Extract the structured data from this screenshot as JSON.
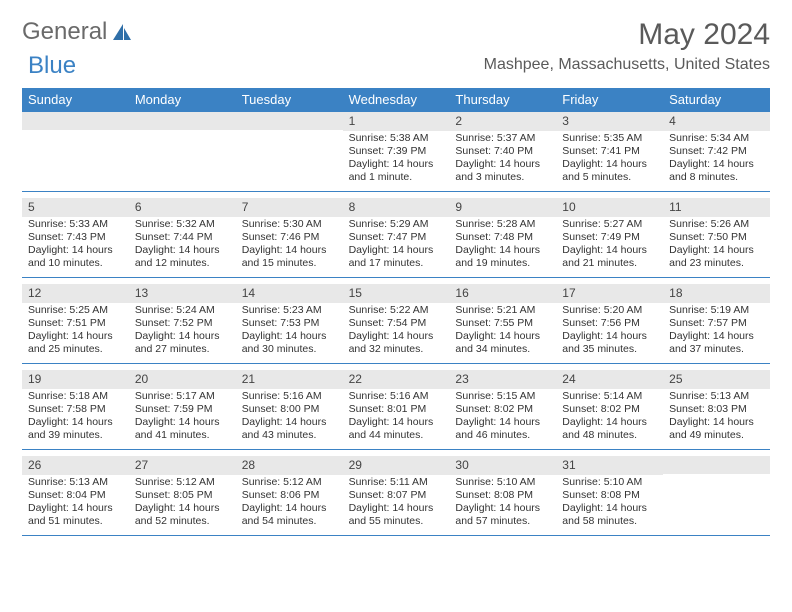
{
  "brand": {
    "part1": "General",
    "part2": "Blue"
  },
  "title": "May 2024",
  "location": "Mashpee, Massachusetts, United States",
  "colors": {
    "header_bg": "#3b82c4",
    "header_text": "#ffffff",
    "date_bg": "#e8e8e8",
    "divider": "#3b82c4",
    "text": "#333333",
    "title_text": "#5a5a5a"
  },
  "day_names": [
    "Sunday",
    "Monday",
    "Tuesday",
    "Wednesday",
    "Thursday",
    "Friday",
    "Saturday"
  ],
  "weeks": [
    [
      {
        "date": "",
        "sunrise": "",
        "sunset": "",
        "daylight": ""
      },
      {
        "date": "",
        "sunrise": "",
        "sunset": "",
        "daylight": ""
      },
      {
        "date": "",
        "sunrise": "",
        "sunset": "",
        "daylight": ""
      },
      {
        "date": "1",
        "sunrise": "Sunrise: 5:38 AM",
        "sunset": "Sunset: 7:39 PM",
        "daylight": "Daylight: 14 hours and 1 minute."
      },
      {
        "date": "2",
        "sunrise": "Sunrise: 5:37 AM",
        "sunset": "Sunset: 7:40 PM",
        "daylight": "Daylight: 14 hours and 3 minutes."
      },
      {
        "date": "3",
        "sunrise": "Sunrise: 5:35 AM",
        "sunset": "Sunset: 7:41 PM",
        "daylight": "Daylight: 14 hours and 5 minutes."
      },
      {
        "date": "4",
        "sunrise": "Sunrise: 5:34 AM",
        "sunset": "Sunset: 7:42 PM",
        "daylight": "Daylight: 14 hours and 8 minutes."
      }
    ],
    [
      {
        "date": "5",
        "sunrise": "Sunrise: 5:33 AM",
        "sunset": "Sunset: 7:43 PM",
        "daylight": "Daylight: 14 hours and 10 minutes."
      },
      {
        "date": "6",
        "sunrise": "Sunrise: 5:32 AM",
        "sunset": "Sunset: 7:44 PM",
        "daylight": "Daylight: 14 hours and 12 minutes."
      },
      {
        "date": "7",
        "sunrise": "Sunrise: 5:30 AM",
        "sunset": "Sunset: 7:46 PM",
        "daylight": "Daylight: 14 hours and 15 minutes."
      },
      {
        "date": "8",
        "sunrise": "Sunrise: 5:29 AM",
        "sunset": "Sunset: 7:47 PM",
        "daylight": "Daylight: 14 hours and 17 minutes."
      },
      {
        "date": "9",
        "sunrise": "Sunrise: 5:28 AM",
        "sunset": "Sunset: 7:48 PM",
        "daylight": "Daylight: 14 hours and 19 minutes."
      },
      {
        "date": "10",
        "sunrise": "Sunrise: 5:27 AM",
        "sunset": "Sunset: 7:49 PM",
        "daylight": "Daylight: 14 hours and 21 minutes."
      },
      {
        "date": "11",
        "sunrise": "Sunrise: 5:26 AM",
        "sunset": "Sunset: 7:50 PM",
        "daylight": "Daylight: 14 hours and 23 minutes."
      }
    ],
    [
      {
        "date": "12",
        "sunrise": "Sunrise: 5:25 AM",
        "sunset": "Sunset: 7:51 PM",
        "daylight": "Daylight: 14 hours and 25 minutes."
      },
      {
        "date": "13",
        "sunrise": "Sunrise: 5:24 AM",
        "sunset": "Sunset: 7:52 PM",
        "daylight": "Daylight: 14 hours and 27 minutes."
      },
      {
        "date": "14",
        "sunrise": "Sunrise: 5:23 AM",
        "sunset": "Sunset: 7:53 PM",
        "daylight": "Daylight: 14 hours and 30 minutes."
      },
      {
        "date": "15",
        "sunrise": "Sunrise: 5:22 AM",
        "sunset": "Sunset: 7:54 PM",
        "daylight": "Daylight: 14 hours and 32 minutes."
      },
      {
        "date": "16",
        "sunrise": "Sunrise: 5:21 AM",
        "sunset": "Sunset: 7:55 PM",
        "daylight": "Daylight: 14 hours and 34 minutes."
      },
      {
        "date": "17",
        "sunrise": "Sunrise: 5:20 AM",
        "sunset": "Sunset: 7:56 PM",
        "daylight": "Daylight: 14 hours and 35 minutes."
      },
      {
        "date": "18",
        "sunrise": "Sunrise: 5:19 AM",
        "sunset": "Sunset: 7:57 PM",
        "daylight": "Daylight: 14 hours and 37 minutes."
      }
    ],
    [
      {
        "date": "19",
        "sunrise": "Sunrise: 5:18 AM",
        "sunset": "Sunset: 7:58 PM",
        "daylight": "Daylight: 14 hours and 39 minutes."
      },
      {
        "date": "20",
        "sunrise": "Sunrise: 5:17 AM",
        "sunset": "Sunset: 7:59 PM",
        "daylight": "Daylight: 14 hours and 41 minutes."
      },
      {
        "date": "21",
        "sunrise": "Sunrise: 5:16 AM",
        "sunset": "Sunset: 8:00 PM",
        "daylight": "Daylight: 14 hours and 43 minutes."
      },
      {
        "date": "22",
        "sunrise": "Sunrise: 5:16 AM",
        "sunset": "Sunset: 8:01 PM",
        "daylight": "Daylight: 14 hours and 44 minutes."
      },
      {
        "date": "23",
        "sunrise": "Sunrise: 5:15 AM",
        "sunset": "Sunset: 8:02 PM",
        "daylight": "Daylight: 14 hours and 46 minutes."
      },
      {
        "date": "24",
        "sunrise": "Sunrise: 5:14 AM",
        "sunset": "Sunset: 8:02 PM",
        "daylight": "Daylight: 14 hours and 48 minutes."
      },
      {
        "date": "25",
        "sunrise": "Sunrise: 5:13 AM",
        "sunset": "Sunset: 8:03 PM",
        "daylight": "Daylight: 14 hours and 49 minutes."
      }
    ],
    [
      {
        "date": "26",
        "sunrise": "Sunrise: 5:13 AM",
        "sunset": "Sunset: 8:04 PM",
        "daylight": "Daylight: 14 hours and 51 minutes."
      },
      {
        "date": "27",
        "sunrise": "Sunrise: 5:12 AM",
        "sunset": "Sunset: 8:05 PM",
        "daylight": "Daylight: 14 hours and 52 minutes."
      },
      {
        "date": "28",
        "sunrise": "Sunrise: 5:12 AM",
        "sunset": "Sunset: 8:06 PM",
        "daylight": "Daylight: 14 hours and 54 minutes."
      },
      {
        "date": "29",
        "sunrise": "Sunrise: 5:11 AM",
        "sunset": "Sunset: 8:07 PM",
        "daylight": "Daylight: 14 hours and 55 minutes."
      },
      {
        "date": "30",
        "sunrise": "Sunrise: 5:10 AM",
        "sunset": "Sunset: 8:08 PM",
        "daylight": "Daylight: 14 hours and 57 minutes."
      },
      {
        "date": "31",
        "sunrise": "Sunrise: 5:10 AM",
        "sunset": "Sunset: 8:08 PM",
        "daylight": "Daylight: 14 hours and 58 minutes."
      },
      {
        "date": "",
        "sunrise": "",
        "sunset": "",
        "daylight": ""
      }
    ]
  ]
}
